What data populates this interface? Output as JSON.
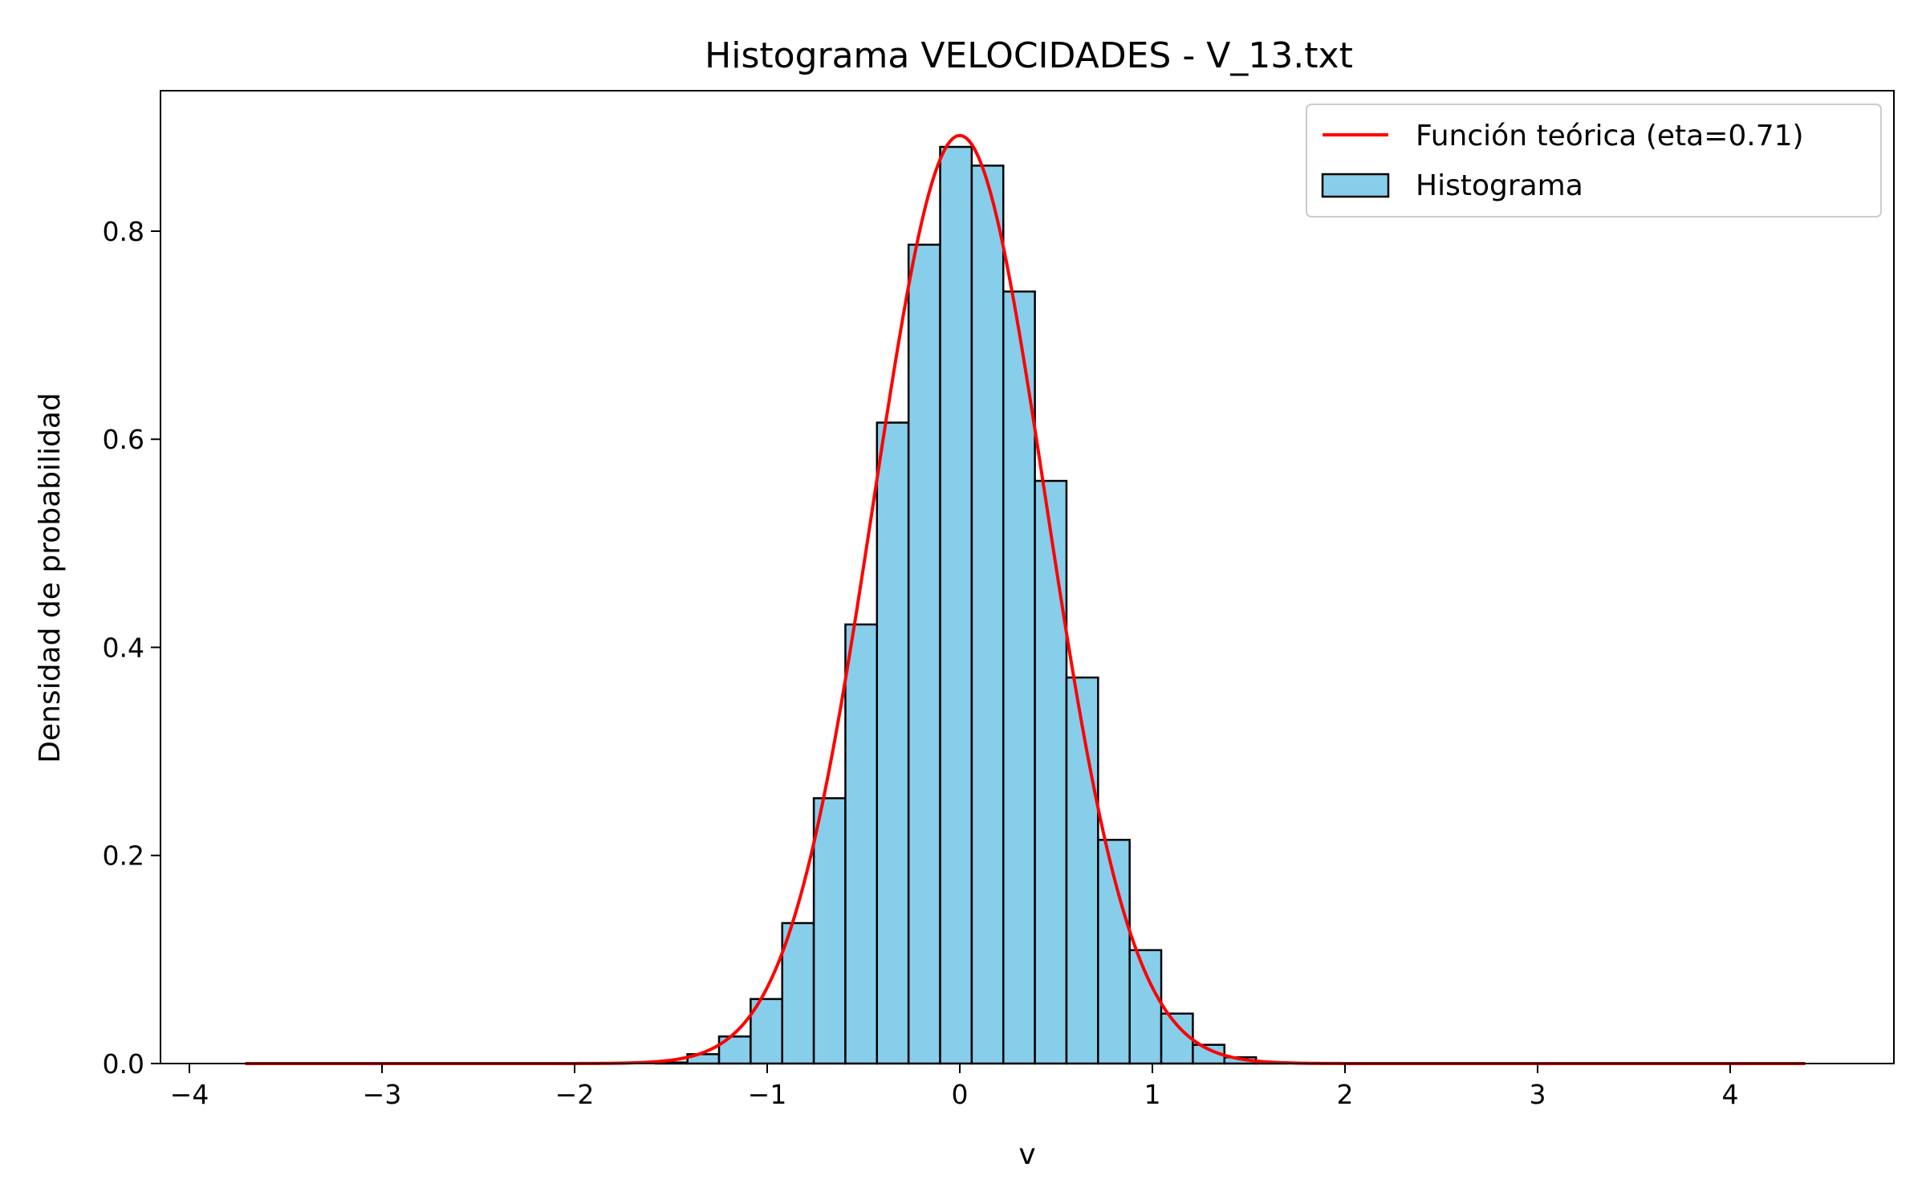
{
  "chart_data": {
    "type": "bar",
    "title": "Histograma VELOCIDADES - V_13.txt",
    "xlabel": "v",
    "ylabel": "Densidad de probabilidad",
    "xlim": [
      -4.15,
      4.85
    ],
    "ylim": [
      0,
      0.935
    ],
    "x_ticks": [
      -4,
      -3,
      -2,
      -1,
      0,
      1,
      2,
      3,
      4
    ],
    "x_tick_labels": [
      "−4",
      "−3",
      "−2",
      "−1",
      "0",
      "1",
      "2",
      "3",
      "4"
    ],
    "y_ticks": [
      0.0,
      0.2,
      0.4,
      0.6,
      0.8
    ],
    "y_tick_labels": [
      "0.0",
      "0.2",
      "0.4",
      "0.6",
      "0.8"
    ],
    "grid": false,
    "legend_position": "top-right",
    "histogram": {
      "name": "Histograma",
      "color": "#87CEEB",
      "edge_color": "#000000",
      "bin_width": 0.164,
      "bin_starts": [
        -3.71,
        -3.546,
        -3.382,
        -3.218,
        -3.054,
        -2.89,
        -2.726,
        -2.562,
        -2.398,
        -2.234,
        -2.07,
        -1.906,
        -1.742,
        -1.578,
        -1.414,
        -1.25,
        -1.086,
        -0.922,
        -0.758,
        -0.594,
        -0.43,
        -0.266,
        -0.102,
        0.062,
        0.226,
        0.39,
        0.554,
        0.718,
        0.882,
        1.046,
        1.21,
        1.374,
        1.538,
        1.702,
        1.866,
        2.03,
        2.194,
        2.358,
        2.522,
        2.686,
        2.85,
        3.014,
        3.178,
        3.342,
        3.506,
        3.67,
        3.834,
        3.998,
        4.162,
        4.326
      ],
      "values": [
        0,
        0,
        0,
        0,
        0,
        0,
        0,
        0,
        0,
        0,
        0,
        0,
        0,
        0.001,
        0.009,
        0.026,
        0.062,
        0.135,
        0.255,
        0.422,
        0.616,
        0.787,
        0.881,
        0.863,
        0.742,
        0.56,
        0.371,
        0.215,
        0.109,
        0.048,
        0.018,
        0.006,
        0.001,
        0,
        0,
        0,
        0,
        0,
        0,
        0,
        0,
        0,
        0,
        0,
        0,
        0,
        0,
        0,
        0,
        0
      ]
    },
    "curve": {
      "name": "Función teórica (eta=0.71)",
      "color": "#ff0000",
      "x_range": [
        -3.71,
        4.39
      ],
      "peak": 0.892,
      "mean": 0.0,
      "sigma": 0.447
    }
  }
}
